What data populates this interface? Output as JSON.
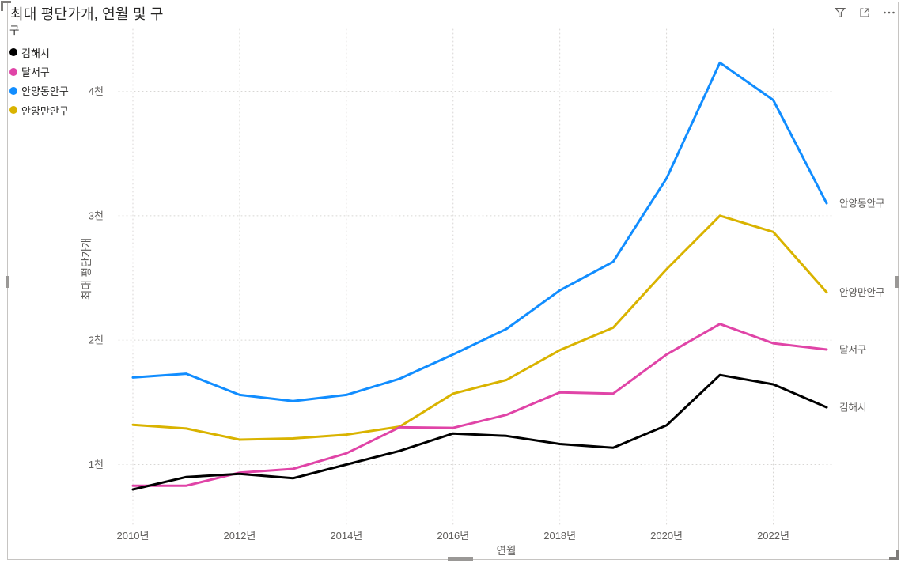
{
  "visual": {
    "title": "최대 평단가개, 연월 및 구",
    "header_icons": [
      {
        "name": "filter-icon"
      },
      {
        "name": "focus-mode-icon"
      },
      {
        "name": "more-options-icon"
      }
    ]
  },
  "legend": {
    "title": "구",
    "items": [
      {
        "label": "김해시",
        "color": "#000000"
      },
      {
        "label": "달서구",
        "color": "#E044A7"
      },
      {
        "label": "안양동안구",
        "color": "#118DFF"
      },
      {
        "label": "안양만안구",
        "color": "#D9B300"
      }
    ]
  },
  "chart_data": {
    "type": "line",
    "title": "최대 평단가개, 연월 및 구",
    "xlabel": "연월",
    "ylabel": "최대 평단가개",
    "legend_title": "구",
    "legend_position": "top-left",
    "grid": "dotted",
    "x": [
      2010,
      2011,
      2012,
      2013,
      2014,
      2015,
      2016,
      2017,
      2018,
      2019,
      2020,
      2021,
      2022,
      2023
    ],
    "x_ticks": [
      {
        "year": 2010,
        "label": "2010년"
      },
      {
        "year": 2012,
        "label": "2012년"
      },
      {
        "year": 2014,
        "label": "2014년"
      },
      {
        "year": 2016,
        "label": "2016년"
      },
      {
        "year": 2018,
        "label": "2018년"
      },
      {
        "year": 2020,
        "label": "2020년"
      },
      {
        "year": 2022,
        "label": "2022년"
      }
    ],
    "y_ticks": [
      {
        "value": 1000,
        "label": "1천"
      },
      {
        "value": 2000,
        "label": "2천"
      },
      {
        "value": 3000,
        "label": "3천"
      },
      {
        "value": 4000,
        "label": "4천"
      }
    ],
    "ylim": [
      500,
      4500
    ],
    "series": [
      {
        "name": "김해시",
        "color": "#000000",
        "values": [
          800,
          900,
          925,
          890,
          1000,
          1110,
          1250,
          1230,
          1165,
          1135,
          1315,
          1720,
          1645,
          1460
        ]
      },
      {
        "name": "달서구",
        "color": "#E044A7",
        "values": [
          830,
          830,
          935,
          965,
          1090,
          1300,
          1295,
          1400,
          1580,
          1570,
          1885,
          2130,
          1975,
          1925
        ]
      },
      {
        "name": "안양동안구",
        "color": "#118DFF",
        "values": [
          1700,
          1730,
          1560,
          1510,
          1560,
          1690,
          1885,
          2090,
          2400,
          2630,
          3300,
          4230,
          3930,
          3100
        ]
      },
      {
        "name": "안양만안구",
        "color": "#D9B300",
        "values": [
          1320,
          1290,
          1200,
          1210,
          1240,
          1305,
          1570,
          1680,
          1920,
          2100,
          2570,
          3000,
          2870,
          2385
        ]
      }
    ]
  }
}
